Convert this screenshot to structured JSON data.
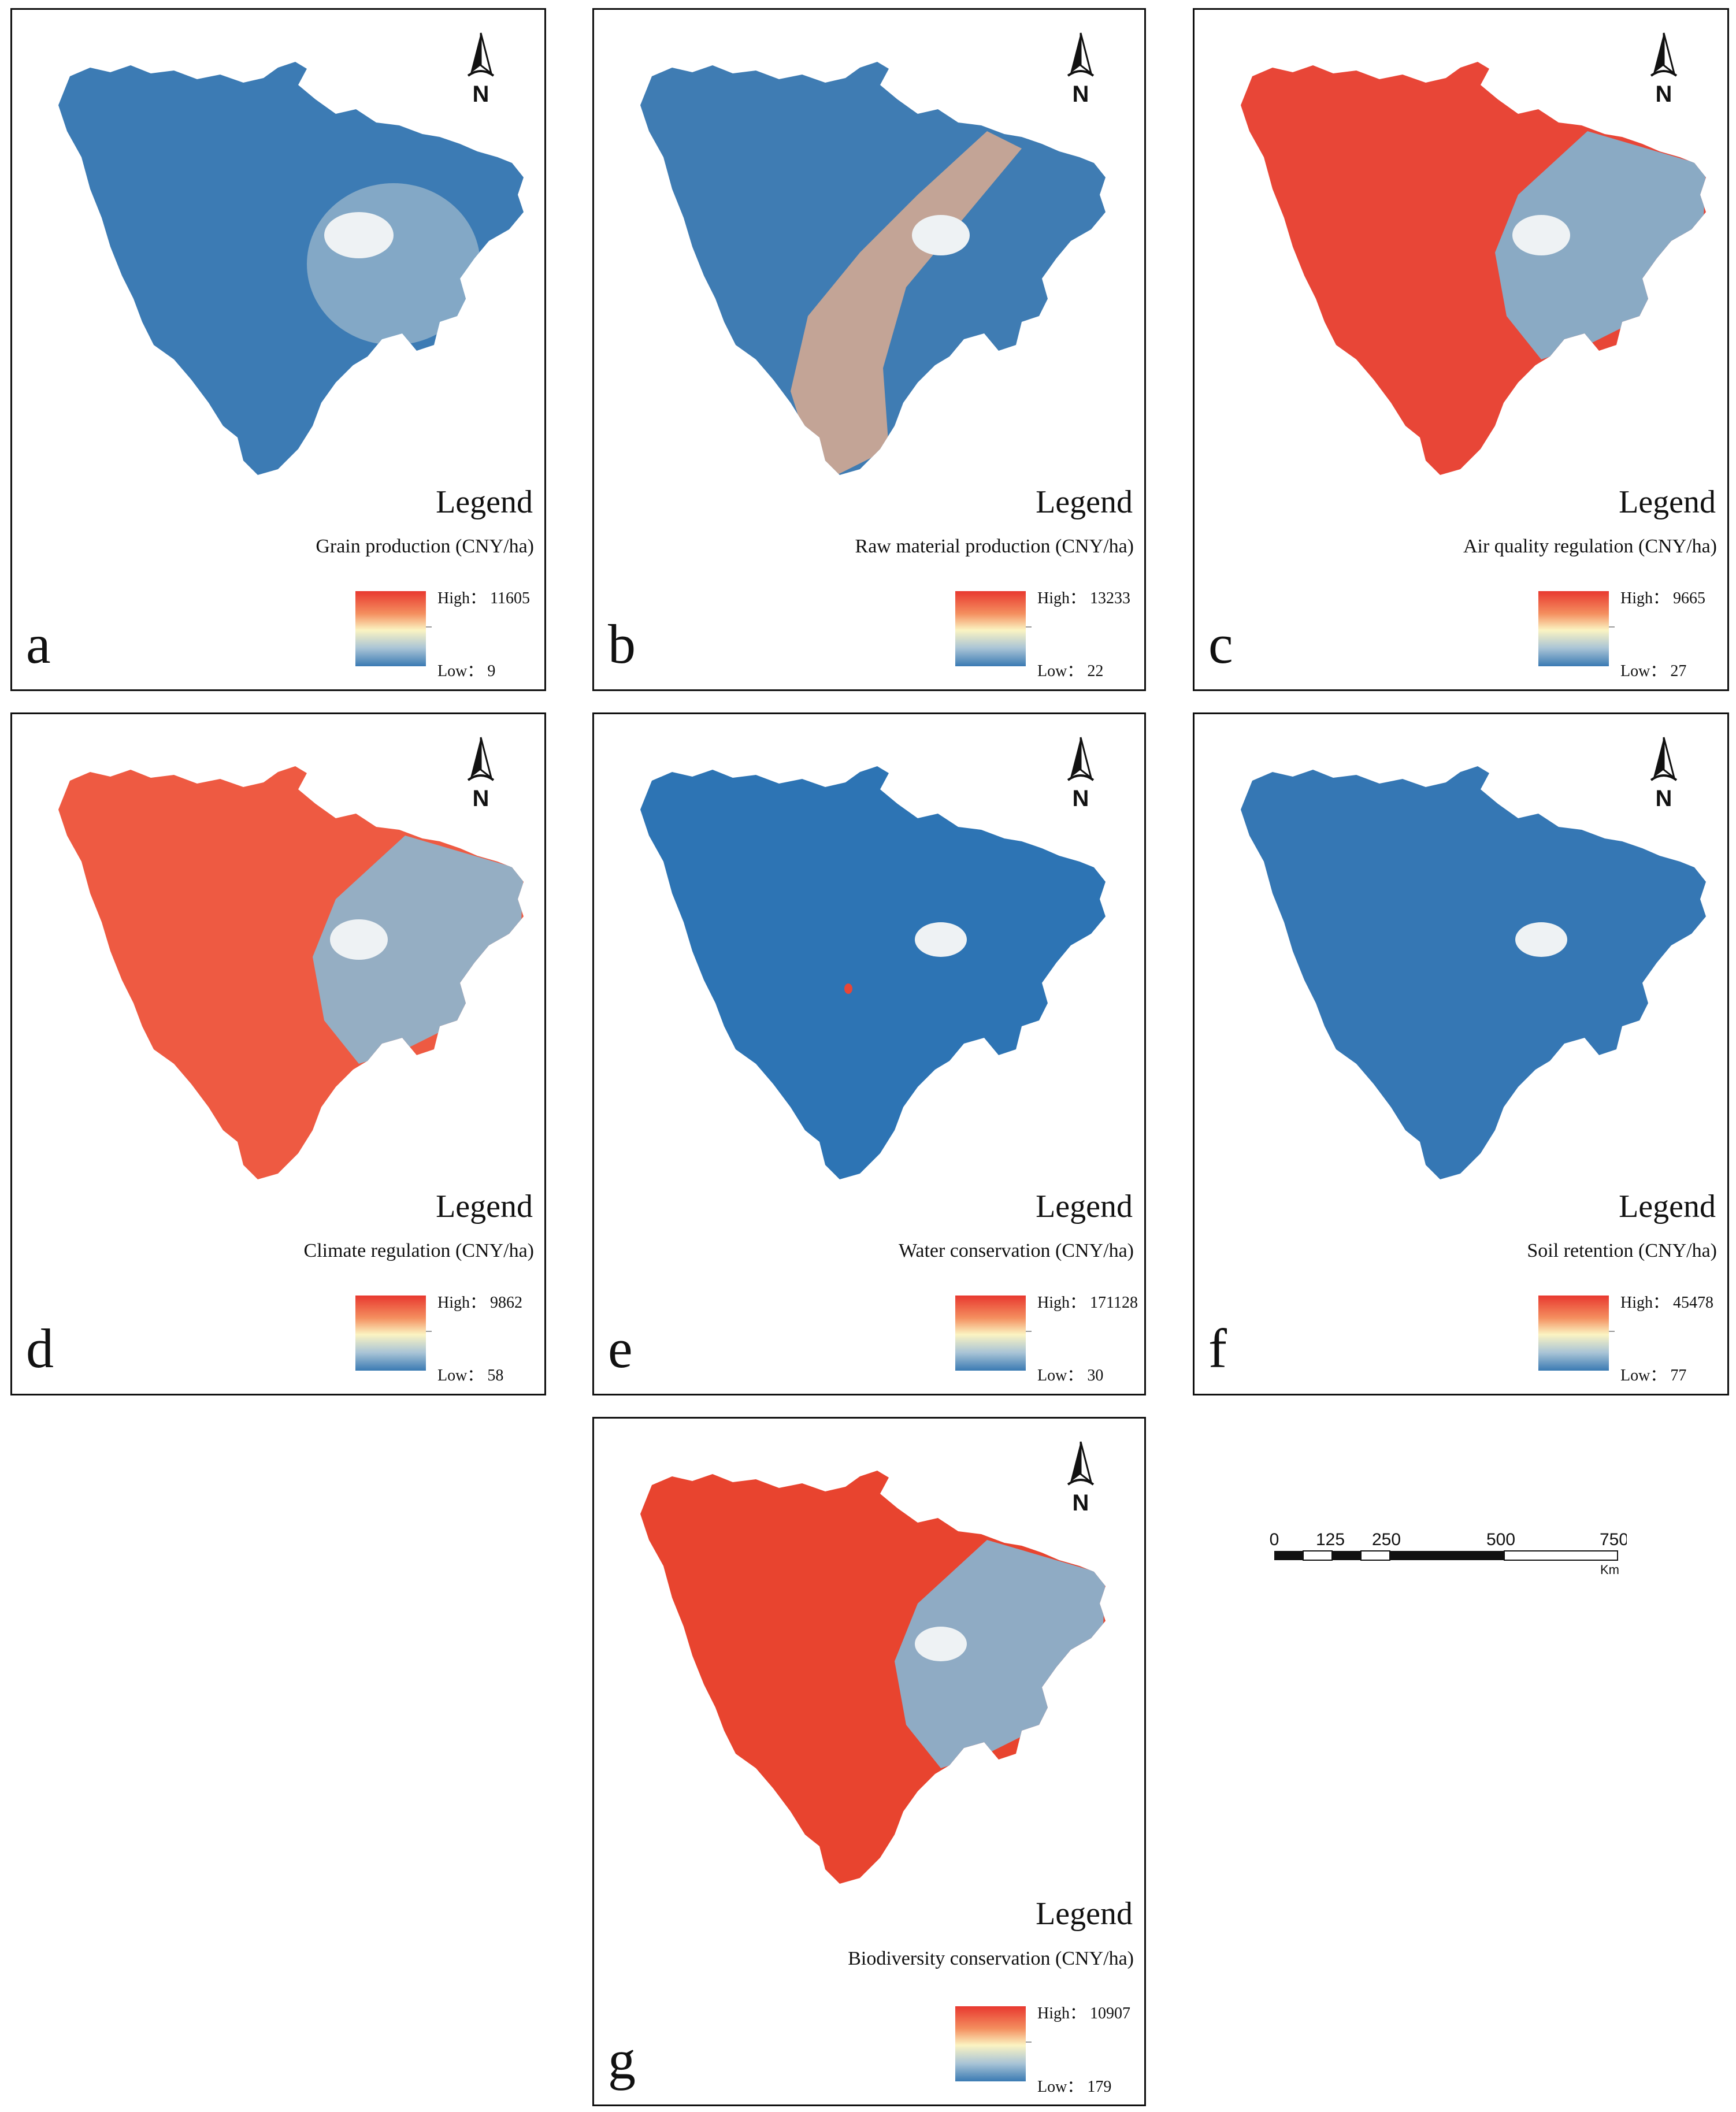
{
  "figure": {
    "panels": [
      {
        "letter": "a",
        "title": "Legend",
        "variable": "Grain production (CNY/ha)",
        "high": "High： 11605",
        "low": "Low： 9"
      },
      {
        "letter": "b",
        "title": "Legend",
        "variable": "Raw material production (CNY/ha)",
        "high": "High： 13233",
        "low": "Low： 22"
      },
      {
        "letter": "c",
        "title": "Legend",
        "variable": "Air quality regulation (CNY/ha)",
        "high": "High： 9665",
        "low": "Low： 27"
      },
      {
        "letter": "d",
        "title": "Legend",
        "variable": "Climate regulation (CNY/ha)",
        "high": "High： 9862",
        "low": "Low： 58"
      },
      {
        "letter": "e",
        "title": "Legend",
        "variable": "Water conservation (CNY/ha)",
        "high": "High： 171128",
        "low": "Low： 30"
      },
      {
        "letter": "f",
        "title": "Legend",
        "variable": "Soil retention (CNY/ha)",
        "high": "High： 45478",
        "low": "Low： 77"
      },
      {
        "letter": "g",
        "title": "Legend",
        "variable": "Biodiversity conservation (CNY/ha)",
        "high": "High： 10907",
        "low": "Low： 179"
      }
    ],
    "north_label": "N",
    "scale": {
      "ticks": [
        "0",
        "125",
        "250",
        "500",
        "750"
      ],
      "unit": "Km"
    },
    "colors": {
      "high": "#e8382f",
      "mid": "#fbf4c2",
      "low": "#3a7ab3",
      "frame": "#111111"
    }
  }
}
